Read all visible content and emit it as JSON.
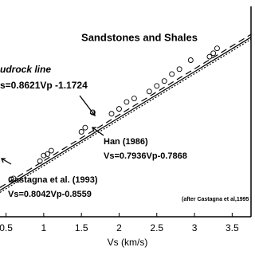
{
  "chart_data": {
    "type": "scatter",
    "title": "Sandstones and Shales",
    "x_label": "Vs (km/s)",
    "xlim": [
      0.42,
      3.75
    ],
    "ylim": [
      0.5,
      3.5
    ],
    "xticks": [
      0.5,
      1,
      1.5,
      2,
      2.5,
      3,
      3.5
    ],
    "points": {
      "color": "#000000",
      "x": [
        0.6,
        0.95,
        1.0,
        1.05,
        1.1,
        1.5,
        1.55,
        1.65,
        1.9,
        2.0,
        2.1,
        2.2,
        2.4,
        2.5,
        2.6,
        2.7,
        2.8,
        2.95,
        3.2,
        3.25,
        3.3
      ],
      "values": [
        1.05,
        1.3,
        1.38,
        1.4,
        1.45,
        1.72,
        1.78,
        2.0,
        1.98,
        2.05,
        2.15,
        2.2,
        2.3,
        2.38,
        2.45,
        2.55,
        2.62,
        2.75,
        2.8,
        2.85,
        2.92
      ]
    },
    "lines": [
      {
        "name": "udrock line",
        "equation": "s=0.8621Vp -1.1724",
        "color": "#000000",
        "dash": "8,5",
        "x": [
          0.42,
          3.75
        ],
        "values": [
          0.92,
          3.12
        ]
      },
      {
        "name": "Han (1986)",
        "equation": "Vs=0.7936Vp-0.7868",
        "color": "#000000",
        "dash": "none",
        "x": [
          0.42,
          3.75
        ],
        "values": [
          0.88,
          3.08
        ]
      },
      {
        "name": "Castagna et al. (1993)",
        "equation": "Vs=0.8042Vp-0.8559",
        "color": "#000000",
        "dash": "2,2",
        "x": [
          0.42,
          3.75
        ],
        "values": [
          0.85,
          3.05
        ]
      }
    ],
    "source": "(after Castagna  et al,1995"
  }
}
